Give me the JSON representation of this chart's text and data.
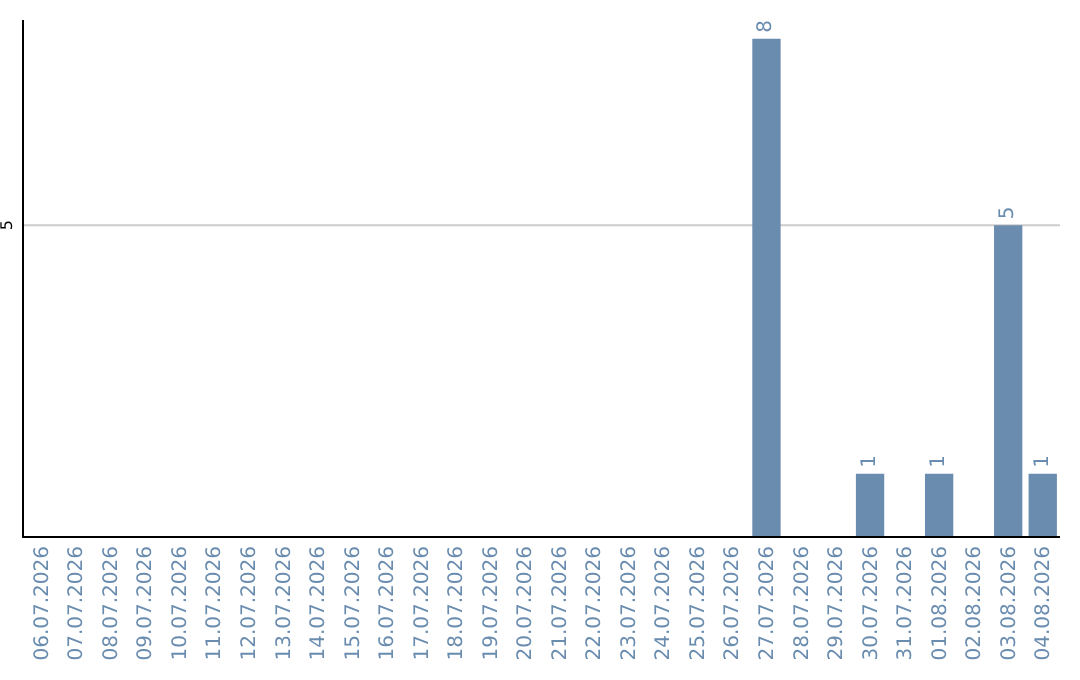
{
  "chart_data": {
    "type": "bar",
    "categories": [
      "06.07.2026",
      "07.07.2026",
      "08.07.2026",
      "09.07.2026",
      "10.07.2026",
      "11.07.2026",
      "12.07.2026",
      "13.07.2026",
      "14.07.2026",
      "15.07.2026",
      "16.07.2026",
      "17.07.2026",
      "18.07.2026",
      "19.07.2026",
      "20.07.2026",
      "21.07.2026",
      "22.07.2026",
      "23.07.2026",
      "24.07.2026",
      "25.07.2026",
      "26.07.2026",
      "27.07.2026",
      "28.07.2026",
      "29.07.2026",
      "30.07.2026",
      "31.07.2026",
      "01.08.2026",
      "02.08.2026",
      "03.08.2026",
      "04.08.2026"
    ],
    "values": [
      null,
      null,
      null,
      null,
      null,
      null,
      null,
      null,
      null,
      null,
      null,
      null,
      null,
      null,
      null,
      null,
      null,
      null,
      null,
      null,
      null,
      8,
      null,
      null,
      1,
      null,
      1,
      null,
      5,
      1
    ],
    "data_labels": true,
    "color": "#6a8caf",
    "ylim": [
      0,
      8.3
    ],
    "ref_lines": [
      {
        "axis": "y",
        "value": 5,
        "label": "5",
        "color": "#cccccc"
      }
    ]
  }
}
